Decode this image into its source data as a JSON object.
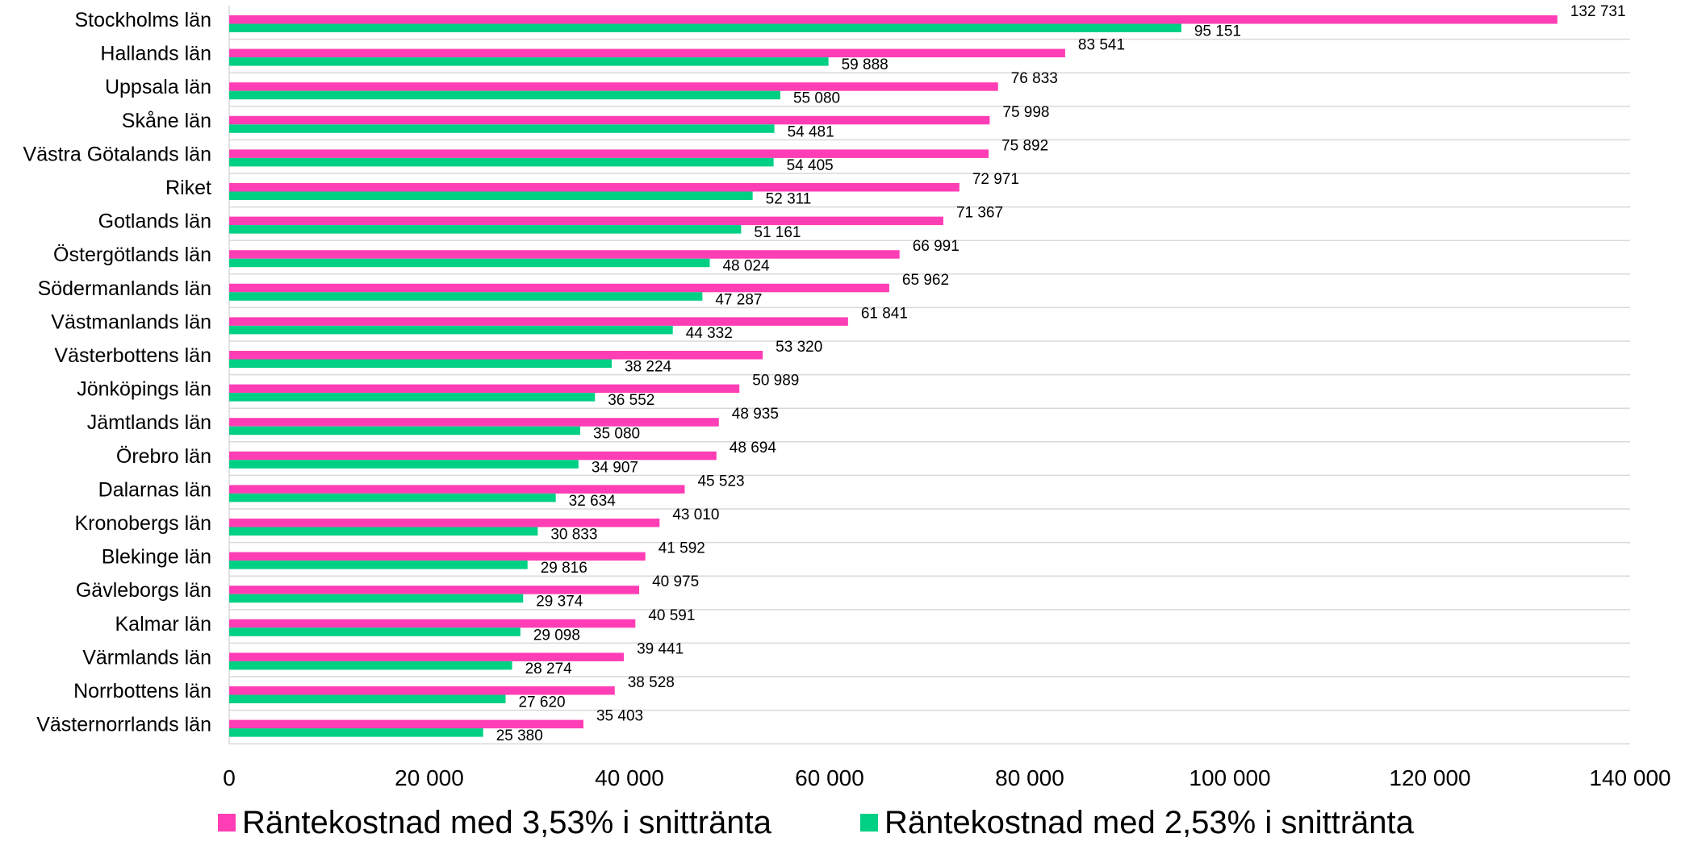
{
  "chart_data": {
    "type": "bar",
    "orientation": "horizontal",
    "categories": [
      "Stockholms län",
      "Hallands län",
      "Uppsala län",
      "Skåne län",
      "Västra Götalands län",
      "Riket",
      "Gotlands län",
      "Östergötlands län",
      "Södermanlands län",
      "Västmanlands län",
      "Västerbottens län",
      "Jönköpings län",
      "Jämtlands län",
      "Örebro län",
      "Dalarnas län",
      "Kronobergs län",
      "Blekinge län",
      "Gävleborgs län",
      "Kalmar län",
      "Värmlands län",
      "Norrbottens län",
      "Västernorrlands län"
    ],
    "series": [
      {
        "name": "Räntekostnad med 3,53% i snittränta",
        "color": "#ff3eb5",
        "values": [
          132731,
          83541,
          76833,
          75998,
          75892,
          72971,
          71367,
          66991,
          65962,
          61841,
          53320,
          50989,
          48935,
          48694,
          45523,
          43010,
          41592,
          40975,
          40591,
          39441,
          38528,
          35403
        ],
        "labels": [
          "132 731",
          "83 541",
          "76 833",
          "75 998",
          "75 892",
          "72 971",
          "71 367",
          "66 991",
          "65 962",
          "61 841",
          "53 320",
          "50 989",
          "48 935",
          "48 694",
          "45 523",
          "43 010",
          "41 592",
          "40 975",
          "40 591",
          "39 441",
          "38 528",
          "35 403"
        ]
      },
      {
        "name": "Räntekostnad med 2,53% i snittränta",
        "color": "#00d084",
        "values": [
          95151,
          59888,
          55080,
          54481,
          54405,
          52311,
          51161,
          48024,
          47287,
          44332,
          38224,
          36552,
          35080,
          34907,
          32634,
          30833,
          29816,
          29374,
          29098,
          28274,
          27620,
          25380
        ],
        "labels": [
          "95 151",
          "59 888",
          "55 080",
          "54 481",
          "54 405",
          "52 311",
          "51 161",
          "48 024",
          "47 287",
          "44 332",
          "38 224",
          "36 552",
          "35 080",
          "34 907",
          "32 634",
          "30 833",
          "29 816",
          "29 374",
          "29 098",
          "28 274",
          "27 620",
          "25 380"
        ]
      }
    ],
    "x_ticks": [
      0,
      20000,
      40000,
      60000,
      80000,
      100000,
      120000,
      140000
    ],
    "x_tick_labels": [
      "0",
      "20 000",
      "40 000",
      "60 000",
      "80 000",
      "100 000",
      "120 000",
      "140 000"
    ],
    "xlim": [
      0,
      140000
    ],
    "grid": "horizontal category separators",
    "legend_position": "bottom",
    "title": "",
    "xlabel": "",
    "ylabel": ""
  }
}
